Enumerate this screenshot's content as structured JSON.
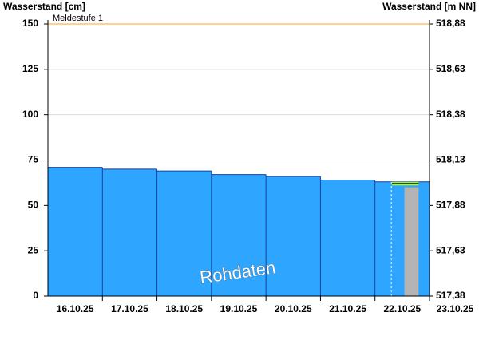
{
  "chart_data": {
    "type": "area",
    "y_label": "Wasserstand [cm]",
    "y2_label": "Wasserstand [m NN]",
    "categories": [
      "16.10.25",
      "17.10.25",
      "18.10.25",
      "19.10.25",
      "20.10.25",
      "21.10.25",
      "22.10.25",
      "23.10.25"
    ],
    "series": [
      {
        "color": "#2ea6ff",
        "values": [
          71,
          70,
          69,
          67,
          66,
          64,
          63,
          null
        ]
      }
    ],
    "forecast": {
      "value": 60,
      "color": "#b4b4b4",
      "range": [
        61,
        63
      ],
      "range_color": "#ccff00"
    },
    "threshold": {
      "label": "Meldestufe 1",
      "value": 150,
      "color": "#ffc266"
    },
    "watermark": "Rohdaten",
    "ylim": [
      0,
      150
    ],
    "yticks": [
      0,
      25,
      50,
      75,
      100,
      125,
      150
    ],
    "y2lim": [
      517.38,
      518.88
    ],
    "y2ticks": [
      {
        "value": 517.38,
        "label": "517,38"
      },
      {
        "value": 517.63,
        "label": "517,63"
      },
      {
        "value": 517.88,
        "label": "517,88"
      },
      {
        "value": 518.13,
        "label": "518,13"
      },
      {
        "value": 518.38,
        "label": "518,38"
      },
      {
        "value": 518.63,
        "label": "518,63"
      },
      {
        "value": 518.88,
        "label": "518,88"
      }
    ],
    "grid": true
  }
}
